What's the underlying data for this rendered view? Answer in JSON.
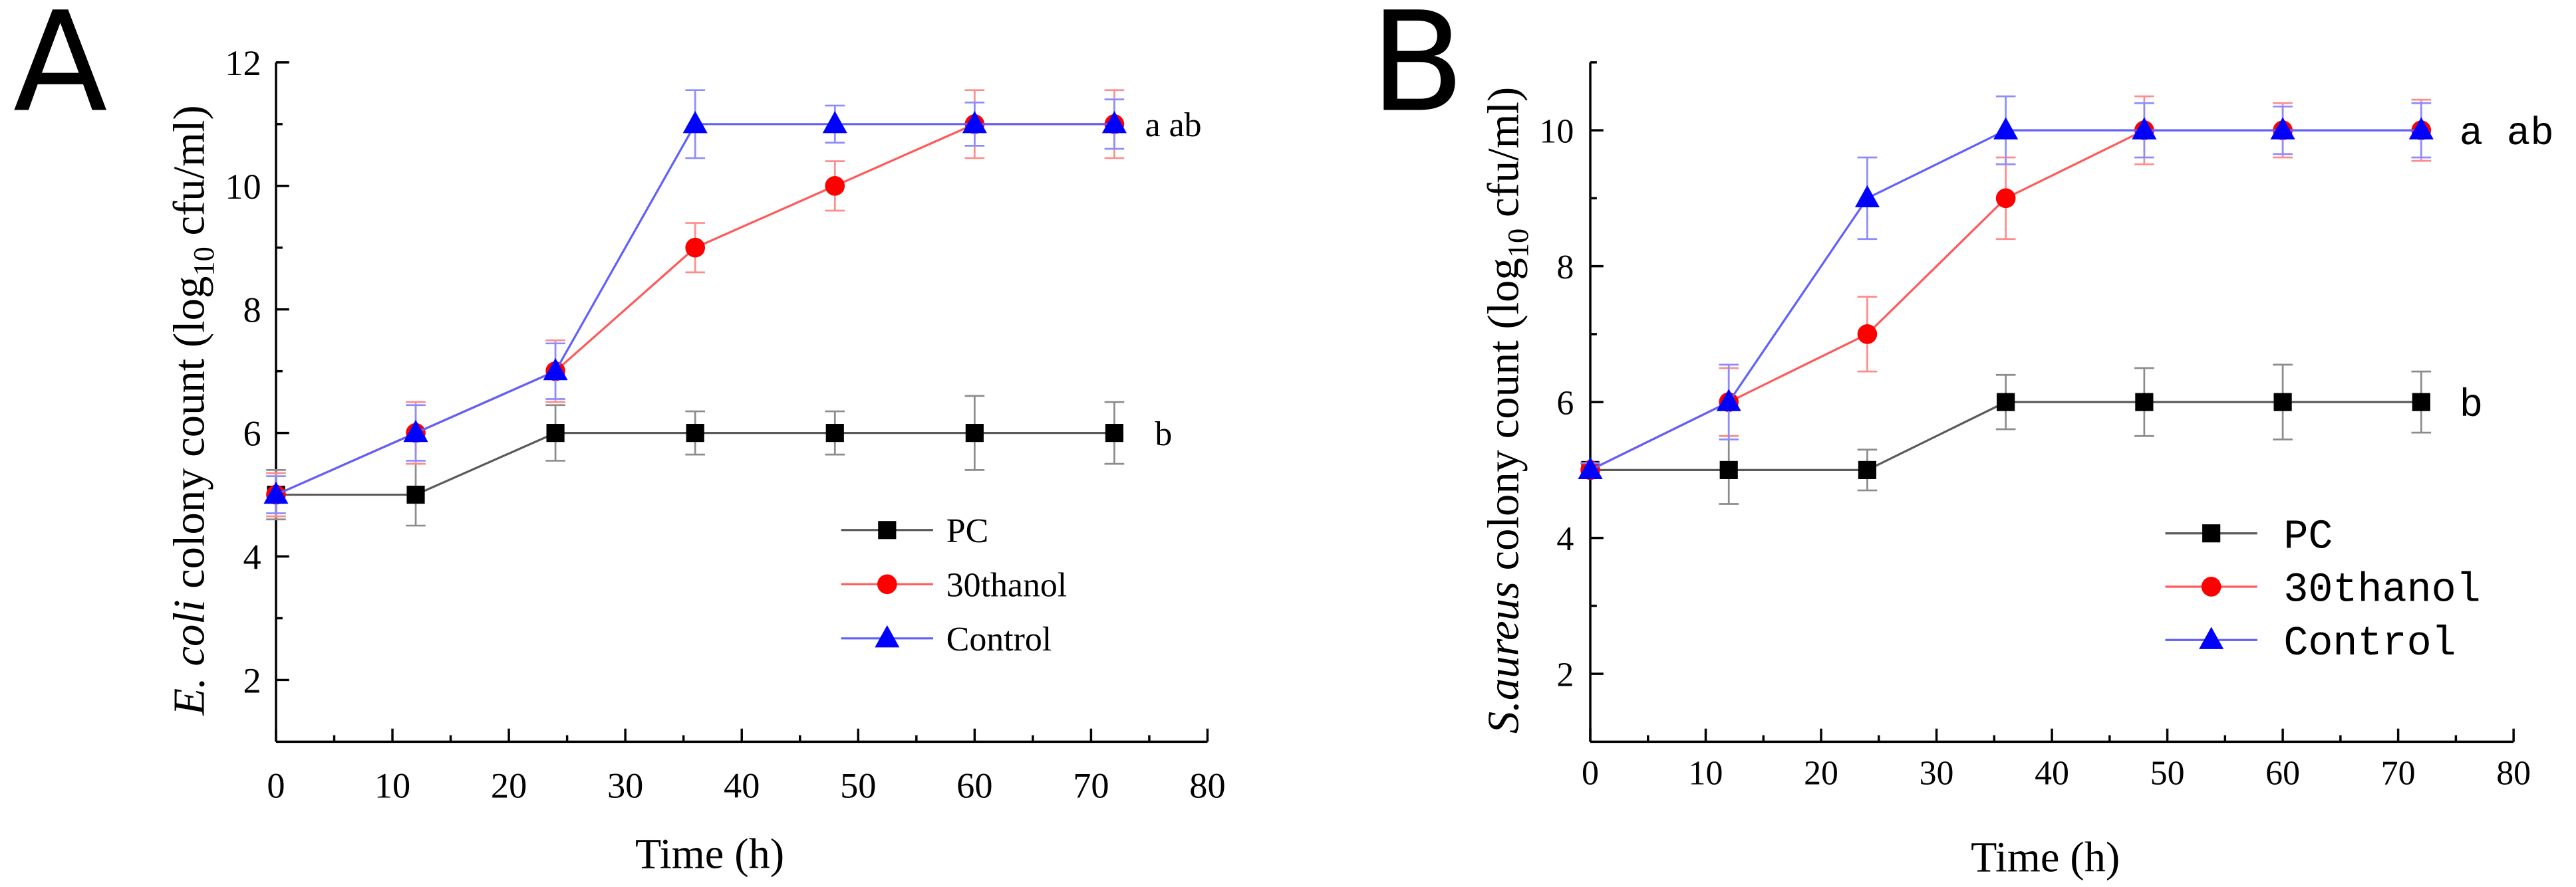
{
  "chart_data": [
    {
      "type": "line",
      "panel_label": "A",
      "title": "",
      "xlabel": "Time (h)",
      "ylabel": {
        "italic": "E. coli",
        "pre": " colony count (log",
        "sub": "10",
        "post": " cfu/ml)"
      },
      "xlim": [
        0,
        80
      ],
      "ylim": [
        1,
        12
      ],
      "xticks": [
        0,
        10,
        20,
        30,
        40,
        50,
        60,
        70,
        80
      ],
      "yticks": [
        2,
        4,
        6,
        8,
        10,
        12
      ],
      "grid": false,
      "legend": "center-right",
      "x": [
        0,
        12,
        24,
        36,
        48,
        60,
        72
      ],
      "series": [
        {
          "name": "PC",
          "marker": "square",
          "color": "#000000",
          "line_color": "#5a5a5a",
          "error_color": "#8c8c8c",
          "values": [
            5,
            5,
            6,
            6,
            6,
            6,
            6
          ],
          "errors": [
            0.4,
            0.5,
            0.45,
            0.35,
            0.35,
            0.6,
            0.5
          ]
        },
        {
          "name": "30thanol",
          "marker": "circle",
          "color": "#ff0000",
          "line_color": "#ff5a5a",
          "error_color": "#ff8c8c",
          "values": [
            5,
            6,
            7,
            9,
            10,
            11,
            11
          ],
          "errors": [
            0.35,
            0.5,
            0.5,
            0.4,
            0.4,
            0.55,
            0.55
          ]
        },
        {
          "name": "Control",
          "marker": "triangle",
          "color": "#0000ff",
          "line_color": "#6060ff",
          "error_color": "#8c8cff",
          "values": [
            5,
            6,
            7,
            11,
            11,
            11,
            11
          ],
          "errors": [
            0.3,
            0.45,
            0.45,
            0.55,
            0.3,
            0.35,
            0.4
          ]
        }
      ],
      "annotations": [
        {
          "text": "a ab",
          "level": 11
        },
        {
          "text": "b",
          "level": 6
        }
      ]
    },
    {
      "type": "line",
      "panel_label": "B",
      "title": "",
      "xlabel": "Time (h)",
      "ylabel": {
        "italic": "S.aureus",
        "pre": " colony count (log",
        "sub": "10",
        "post": " cfu/ml)"
      },
      "xlim": [
        0,
        80
      ],
      "ylim": [
        1,
        11
      ],
      "xticks": [
        0,
        10,
        20,
        30,
        40,
        50,
        60,
        70,
        80
      ],
      "yticks": [
        2,
        4,
        6,
        8,
        10
      ],
      "grid": false,
      "legend": "center-right",
      "x": [
        0,
        12,
        24,
        36,
        48,
        60,
        72
      ],
      "series": [
        {
          "name": "PC",
          "marker": "square",
          "color": "#000000",
          "line_color": "#5a5a5a",
          "error_color": "#8c8c8c",
          "values": [
            5,
            5,
            5,
            6,
            6,
            6,
            6
          ],
          "errors": [
            0.1,
            0.5,
            0.3,
            0.4,
            0.5,
            0.55,
            0.45
          ]
        },
        {
          "name": "30thanol",
          "marker": "circle",
          "color": "#ff0000",
          "line_color": "#ff5a5a",
          "error_color": "#ff8c8c",
          "values": [
            5,
            6,
            7,
            9,
            10,
            10,
            10
          ],
          "errors": [
            0.1,
            0.5,
            0.55,
            0.6,
            0.5,
            0.4,
            0.45
          ]
        },
        {
          "name": "Control",
          "marker": "triangle",
          "color": "#0000ff",
          "line_color": "#6060ff",
          "error_color": "#8c8cff",
          "values": [
            5,
            6,
            9,
            10,
            10,
            10,
            10
          ],
          "errors": [
            0.1,
            0.55,
            0.6,
            0.5,
            0.4,
            0.35,
            0.4
          ]
        }
      ],
      "annotations": [
        {
          "text": "a ab",
          "level": 10
        },
        {
          "text": "b",
          "level": 6
        }
      ]
    }
  ]
}
